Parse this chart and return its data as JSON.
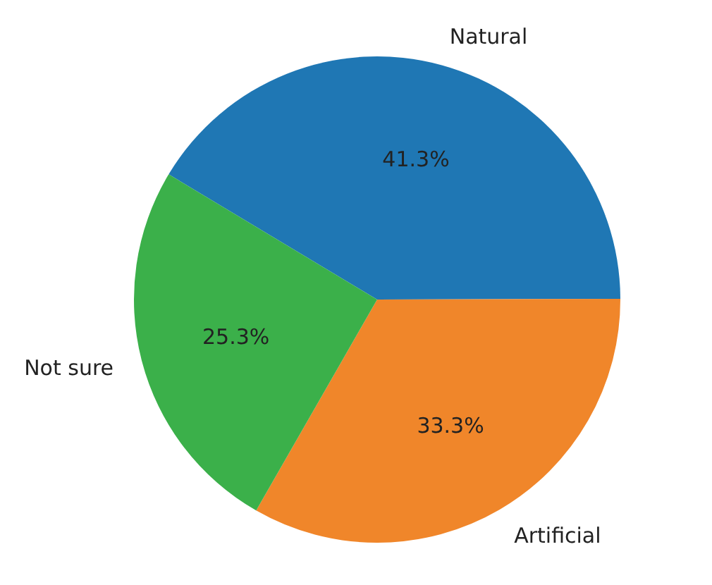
{
  "chart_data": {
    "type": "pie",
    "categories": [
      "Natural",
      "Artificial",
      "Not sure"
    ],
    "values": [
      41.3,
      33.3,
      25.3
    ],
    "colors": [
      "#1f77b4",
      "#f0862a",
      "#3bb04a"
    ],
    "value_labels": [
      "41.3%",
      "33.3%",
      "25.3%"
    ],
    "legend": false
  }
}
